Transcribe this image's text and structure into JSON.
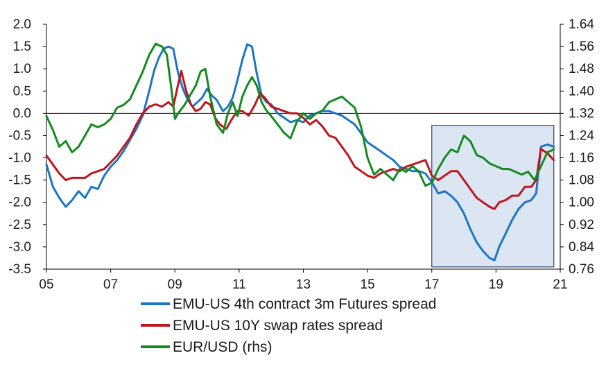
{
  "chart_data": {
    "type": "line",
    "x_axis": {
      "ticks": [
        "05",
        "07",
        "09",
        "11",
        "13",
        "15",
        "17",
        "19",
        "21"
      ],
      "tick_values": [
        2005,
        2007,
        2009,
        2011,
        2013,
        2015,
        2017,
        2019,
        2021
      ],
      "range": [
        2005,
        2021
      ]
    },
    "y_left": {
      "ticks": [
        "2.0",
        "1.5",
        "1.0",
        "0.5",
        "0.0",
        "-0.5",
        "-1.0",
        "-1.5",
        "-2.0",
        "-2.5",
        "-3.0",
        "-3.5"
      ],
      "range": [
        -3.5,
        2.0
      ]
    },
    "y_right": {
      "ticks": [
        "1.64",
        "1.56",
        "1.48",
        "1.40",
        "1.32",
        "1.24",
        "1.16",
        "1.08",
        "1.00",
        "0.92",
        "0.84",
        "0.76"
      ],
      "range": [
        0.76,
        1.64
      ]
    },
    "highlight_box": {
      "x": [
        2017.0,
        2020.8
      ],
      "y": [
        -3.45,
        -0.27
      ],
      "color": "#dce6f2",
      "border": "#3b4f7a"
    },
    "series": [
      {
        "name": "EMU-US 4th contract 3m Futures spread",
        "axis": "left",
        "color": "#1a75c6",
        "points": [
          [
            2005.0,
            -1.15
          ],
          [
            2005.2,
            -1.65
          ],
          [
            2005.4,
            -1.9
          ],
          [
            2005.6,
            -2.1
          ],
          [
            2005.8,
            -1.95
          ],
          [
            2006.0,
            -1.75
          ],
          [
            2006.2,
            -1.9
          ],
          [
            2006.4,
            -1.65
          ],
          [
            2006.6,
            -1.7
          ],
          [
            2006.8,
            -1.4
          ],
          [
            2007.0,
            -1.2
          ],
          [
            2007.2,
            -1.05
          ],
          [
            2007.4,
            -0.85
          ],
          [
            2007.6,
            -0.6
          ],
          [
            2007.8,
            -0.35
          ],
          [
            2008.0,
            -0.05
          ],
          [
            2008.2,
            0.5
          ],
          [
            2008.35,
            0.95
          ],
          [
            2008.5,
            1.25
          ],
          [
            2008.65,
            1.45
          ],
          [
            2008.8,
            1.5
          ],
          [
            2008.95,
            1.45
          ],
          [
            2009.1,
            0.9
          ],
          [
            2009.25,
            0.55
          ],
          [
            2009.4,
            0.3
          ],
          [
            2009.55,
            0.15
          ],
          [
            2009.7,
            0.25
          ],
          [
            2009.85,
            0.35
          ],
          [
            2010.0,
            0.55
          ],
          [
            2010.15,
            0.4
          ],
          [
            2010.3,
            0.3
          ],
          [
            2010.5,
            0.05
          ],
          [
            2010.65,
            0.15
          ],
          [
            2010.8,
            0.35
          ],
          [
            2010.95,
            0.75
          ],
          [
            2011.1,
            1.2
          ],
          [
            2011.25,
            1.55
          ],
          [
            2011.4,
            1.5
          ],
          [
            2011.55,
            0.9
          ],
          [
            2011.7,
            0.4
          ],
          [
            2011.85,
            0.25
          ],
          [
            2012.0,
            0.2
          ],
          [
            2012.2,
            0.0
          ],
          [
            2012.4,
            -0.1
          ],
          [
            2012.6,
            -0.2
          ],
          [
            2012.8,
            -0.15
          ],
          [
            2013.0,
            -0.2
          ],
          [
            2013.2,
            -0.05
          ],
          [
            2013.4,
            0.0
          ],
          [
            2013.6,
            0.05
          ],
          [
            2013.8,
            0.05
          ],
          [
            2014.0,
            0.0
          ],
          [
            2014.2,
            -0.05
          ],
          [
            2014.4,
            -0.15
          ],
          [
            2014.6,
            -0.25
          ],
          [
            2014.8,
            -0.45
          ],
          [
            2015.0,
            -0.65
          ],
          [
            2015.2,
            -0.75
          ],
          [
            2015.4,
            -0.85
          ],
          [
            2015.6,
            -0.95
          ],
          [
            2015.8,
            -1.05
          ],
          [
            2016.0,
            -1.2
          ],
          [
            2016.2,
            -1.25
          ],
          [
            2016.4,
            -1.3
          ],
          [
            2016.6,
            -1.3
          ],
          [
            2016.8,
            -1.35
          ],
          [
            2017.0,
            -1.55
          ],
          [
            2017.2,
            -1.8
          ],
          [
            2017.4,
            -1.75
          ],
          [
            2017.6,
            -1.85
          ],
          [
            2017.8,
            -2.0
          ],
          [
            2018.0,
            -2.25
          ],
          [
            2018.2,
            -2.6
          ],
          [
            2018.4,
            -2.9
          ],
          [
            2018.6,
            -3.1
          ],
          [
            2018.8,
            -3.25
          ],
          [
            2018.95,
            -3.3
          ],
          [
            2019.1,
            -3.0
          ],
          [
            2019.3,
            -2.7
          ],
          [
            2019.5,
            -2.4
          ],
          [
            2019.7,
            -2.15
          ],
          [
            2019.9,
            -2.0
          ],
          [
            2020.1,
            -1.95
          ],
          [
            2020.25,
            -1.8
          ],
          [
            2020.4,
            -0.75
          ],
          [
            2020.6,
            -0.7
          ],
          [
            2020.8,
            -0.75
          ]
        ]
      },
      {
        "name": "EMU-US 10Y swap rates spread",
        "axis": "left",
        "color": "#c0141c",
        "points": [
          [
            2005.0,
            -0.95
          ],
          [
            2005.2,
            -1.15
          ],
          [
            2005.4,
            -1.35
          ],
          [
            2005.6,
            -1.5
          ],
          [
            2005.8,
            -1.45
          ],
          [
            2006.0,
            -1.45
          ],
          [
            2006.2,
            -1.45
          ],
          [
            2006.4,
            -1.35
          ],
          [
            2006.6,
            -1.3
          ],
          [
            2006.8,
            -1.25
          ],
          [
            2007.0,
            -1.1
          ],
          [
            2007.2,
            -0.95
          ],
          [
            2007.4,
            -0.75
          ],
          [
            2007.6,
            -0.55
          ],
          [
            2007.8,
            -0.25
          ],
          [
            2008.0,
            0.0
          ],
          [
            2008.2,
            0.15
          ],
          [
            2008.4,
            0.2
          ],
          [
            2008.6,
            0.15
          ],
          [
            2008.8,
            0.25
          ],
          [
            2008.95,
            0.15
          ],
          [
            2009.1,
            0.65
          ],
          [
            2009.2,
            0.95
          ],
          [
            2009.35,
            0.5
          ],
          [
            2009.5,
            0.2
          ],
          [
            2009.65,
            0.05
          ],
          [
            2009.8,
            0.1
          ],
          [
            2009.95,
            0.25
          ],
          [
            2010.1,
            0.2
          ],
          [
            2010.25,
            -0.1
          ],
          [
            2010.4,
            -0.25
          ],
          [
            2010.6,
            -0.35
          ],
          [
            2010.8,
            -0.1
          ],
          [
            2010.95,
            0.05
          ],
          [
            2011.1,
            0.05
          ],
          [
            2011.3,
            -0.05
          ],
          [
            2011.5,
            0.2
          ],
          [
            2011.65,
            0.45
          ],
          [
            2011.8,
            0.35
          ],
          [
            2012.0,
            0.15
          ],
          [
            2012.2,
            0.1
          ],
          [
            2012.4,
            0.05
          ],
          [
            2012.6,
            0.0
          ],
          [
            2012.8,
            0.0
          ],
          [
            2013.0,
            -0.1
          ],
          [
            2013.2,
            -0.25
          ],
          [
            2013.4,
            -0.15
          ],
          [
            2013.6,
            -0.3
          ],
          [
            2013.8,
            -0.5
          ],
          [
            2014.0,
            -0.55
          ],
          [
            2014.2,
            -0.75
          ],
          [
            2014.4,
            -0.95
          ],
          [
            2014.6,
            -1.2
          ],
          [
            2014.8,
            -1.3
          ],
          [
            2015.0,
            -1.4
          ],
          [
            2015.2,
            -1.45
          ],
          [
            2015.4,
            -1.35
          ],
          [
            2015.6,
            -1.3
          ],
          [
            2015.8,
            -1.25
          ],
          [
            2016.0,
            -1.3
          ],
          [
            2016.2,
            -1.2
          ],
          [
            2016.4,
            -1.15
          ],
          [
            2016.6,
            -1.1
          ],
          [
            2016.8,
            -1.05
          ],
          [
            2017.0,
            -1.4
          ],
          [
            2017.2,
            -1.5
          ],
          [
            2017.4,
            -1.4
          ],
          [
            2017.6,
            -1.3
          ],
          [
            2017.8,
            -1.3
          ],
          [
            2018.0,
            -1.5
          ],
          [
            2018.2,
            -1.7
          ],
          [
            2018.4,
            -1.9
          ],
          [
            2018.6,
            -2.0
          ],
          [
            2018.8,
            -2.1
          ],
          [
            2018.95,
            -2.15
          ],
          [
            2019.1,
            -2.0
          ],
          [
            2019.3,
            -1.95
          ],
          [
            2019.5,
            -1.85
          ],
          [
            2019.7,
            -1.85
          ],
          [
            2019.9,
            -1.65
          ],
          [
            2020.1,
            -1.65
          ],
          [
            2020.25,
            -1.5
          ],
          [
            2020.4,
            -0.8
          ],
          [
            2020.6,
            -0.9
          ],
          [
            2020.8,
            -1.05
          ]
        ]
      },
      {
        "name": "EUR/USD (rhs)",
        "axis": "right",
        "color": "#128a1e",
        "points": [
          [
            2005.0,
            1.31
          ],
          [
            2005.2,
            1.26
          ],
          [
            2005.4,
            1.2
          ],
          [
            2005.6,
            1.22
          ],
          [
            2005.8,
            1.18
          ],
          [
            2006.0,
            1.2
          ],
          [
            2006.2,
            1.24
          ],
          [
            2006.4,
            1.28
          ],
          [
            2006.6,
            1.27
          ],
          [
            2006.8,
            1.28
          ],
          [
            2007.0,
            1.3
          ],
          [
            2007.2,
            1.34
          ],
          [
            2007.4,
            1.35
          ],
          [
            2007.6,
            1.37
          ],
          [
            2007.8,
            1.42
          ],
          [
            2008.0,
            1.47
          ],
          [
            2008.2,
            1.53
          ],
          [
            2008.4,
            1.57
          ],
          [
            2008.6,
            1.56
          ],
          [
            2008.75,
            1.53
          ],
          [
            2008.9,
            1.4
          ],
          [
            2009.0,
            1.3
          ],
          [
            2009.1,
            1.32
          ],
          [
            2009.3,
            1.35
          ],
          [
            2009.5,
            1.39
          ],
          [
            2009.65,
            1.42
          ],
          [
            2009.8,
            1.47
          ],
          [
            2009.95,
            1.48
          ],
          [
            2010.1,
            1.38
          ],
          [
            2010.3,
            1.28
          ],
          [
            2010.5,
            1.25
          ],
          [
            2010.65,
            1.32
          ],
          [
            2010.8,
            1.36
          ],
          [
            2010.95,
            1.31
          ],
          [
            2011.1,
            1.38
          ],
          [
            2011.25,
            1.42
          ],
          [
            2011.4,
            1.45
          ],
          [
            2011.55,
            1.42
          ],
          [
            2011.7,
            1.36
          ],
          [
            2011.85,
            1.33
          ],
          [
            2012.0,
            1.31
          ],
          [
            2012.2,
            1.28
          ],
          [
            2012.4,
            1.25
          ],
          [
            2012.6,
            1.23
          ],
          [
            2012.8,
            1.29
          ],
          [
            2013.0,
            1.32
          ],
          [
            2013.2,
            1.3
          ],
          [
            2013.4,
            1.32
          ],
          [
            2013.6,
            1.33
          ],
          [
            2013.8,
            1.36
          ],
          [
            2014.0,
            1.37
          ],
          [
            2014.2,
            1.38
          ],
          [
            2014.4,
            1.36
          ],
          [
            2014.6,
            1.34
          ],
          [
            2014.8,
            1.27
          ],
          [
            2015.0,
            1.16
          ],
          [
            2015.2,
            1.1
          ],
          [
            2015.4,
            1.12
          ],
          [
            2015.6,
            1.1
          ],
          [
            2015.8,
            1.08
          ],
          [
            2016.0,
            1.12
          ],
          [
            2016.2,
            1.11
          ],
          [
            2016.4,
            1.13
          ],
          [
            2016.6,
            1.11
          ],
          [
            2016.8,
            1.06
          ],
          [
            2017.0,
            1.07
          ],
          [
            2017.2,
            1.12
          ],
          [
            2017.4,
            1.16
          ],
          [
            2017.6,
            1.19
          ],
          [
            2017.8,
            1.18
          ],
          [
            2018.0,
            1.24
          ],
          [
            2018.2,
            1.22
          ],
          [
            2018.4,
            1.17
          ],
          [
            2018.6,
            1.16
          ],
          [
            2018.8,
            1.14
          ],
          [
            2019.0,
            1.13
          ],
          [
            2019.2,
            1.12
          ],
          [
            2019.4,
            1.12
          ],
          [
            2019.6,
            1.11
          ],
          [
            2019.8,
            1.1
          ],
          [
            2020.0,
            1.11
          ],
          [
            2020.2,
            1.08
          ],
          [
            2020.4,
            1.13
          ],
          [
            2020.6,
            1.18
          ],
          [
            2020.8,
            1.19
          ]
        ]
      }
    ]
  }
}
